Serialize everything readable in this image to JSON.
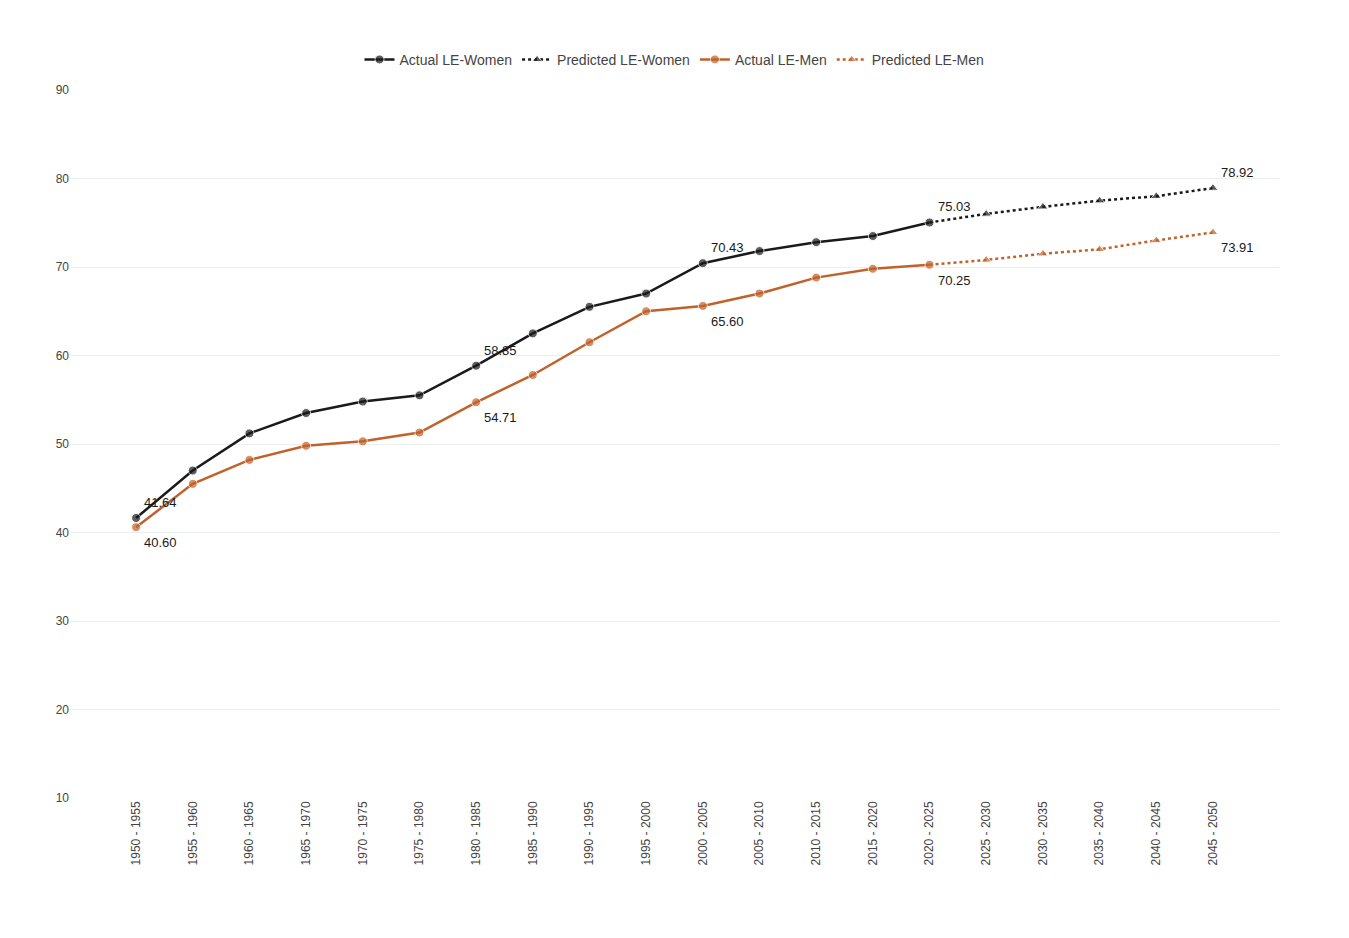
{
  "chart_data": {
    "type": "line",
    "categories": [
      "1950 - 1955",
      "1955 - 1960",
      "1960 - 1965",
      "1965 - 1970",
      "1970 - 1975",
      "1975 - 1980",
      "1980 - 1985",
      "1985 - 1990",
      "1990 - 1995",
      "1995 - 2000",
      "2000 - 2005",
      "2005 - 2010",
      "2010 - 2015",
      "2015 - 2020",
      "2020 - 2025",
      "2025 - 2030",
      "2030 - 2035",
      "2035 - 2040",
      "2040 - 2045",
      "2045 - 2050"
    ],
    "series": [
      {
        "name": "Actual LE-Women",
        "color": "#1a1a1a",
        "line_style": "solid",
        "marker": "circle",
        "values": [
          41.64,
          47.0,
          51.2,
          53.5,
          54.8,
          55.5,
          58.85,
          62.5,
          65.5,
          67.0,
          70.43,
          71.8,
          72.8,
          73.5,
          75.03,
          null,
          null,
          null,
          null,
          null
        ]
      },
      {
        "name": "Predicted LE-Women",
        "color": "#1a1a1a",
        "line_style": "dotted",
        "marker": "triangle",
        "values": [
          null,
          null,
          null,
          null,
          null,
          null,
          null,
          null,
          null,
          null,
          null,
          null,
          null,
          null,
          75.03,
          76.0,
          76.8,
          77.5,
          78.0,
          78.92
        ]
      },
      {
        "name": "Actual LE-Men",
        "color": "#C0622A",
        "line_style": "solid",
        "marker": "circle",
        "values": [
          40.6,
          45.5,
          48.2,
          49.8,
          50.3,
          51.3,
          54.71,
          57.8,
          61.5,
          65.0,
          65.6,
          67.0,
          68.8,
          69.8,
          70.25,
          null,
          null,
          null,
          null,
          null
        ]
      },
      {
        "name": "Predicted LE-Men",
        "color": "#C0622A",
        "line_style": "dotted",
        "marker": "triangle",
        "values": [
          null,
          null,
          null,
          null,
          null,
          null,
          null,
          null,
          null,
          null,
          null,
          null,
          null,
          null,
          70.25,
          70.8,
          71.5,
          72.0,
          73.0,
          73.91
        ]
      }
    ],
    "annotations": [
      {
        "x": "1950 - 1955",
        "y": 41.64,
        "text": "41.64"
      },
      {
        "x": "1950 - 1955",
        "y": 40.6,
        "text": "40.60"
      },
      {
        "x": "1980 - 1985",
        "y": 58.85,
        "text": "58.85"
      },
      {
        "x": "1980 - 1985",
        "y": 54.71,
        "text": "54.71"
      },
      {
        "x": "2000 - 2005",
        "y": 70.43,
        "text": "70.43"
      },
      {
        "x": "2000 - 2005",
        "y": 65.6,
        "text": "65.60"
      },
      {
        "x": "2020 - 2025",
        "y": 75.03,
        "text": "75.03"
      },
      {
        "x": "2020 - 2025",
        "y": 70.25,
        "text": "70.25"
      },
      {
        "x": "2045 - 2050",
        "y": 78.92,
        "text": "78.92"
      },
      {
        "x": "2045 - 2050",
        "y": 73.91,
        "text": "73.91"
      }
    ],
    "ylim": [
      10,
      90
    ],
    "yticks": [
      10,
      20,
      30,
      40,
      50,
      60,
      70,
      80,
      90
    ],
    "grid": true,
    "legend": "top"
  }
}
